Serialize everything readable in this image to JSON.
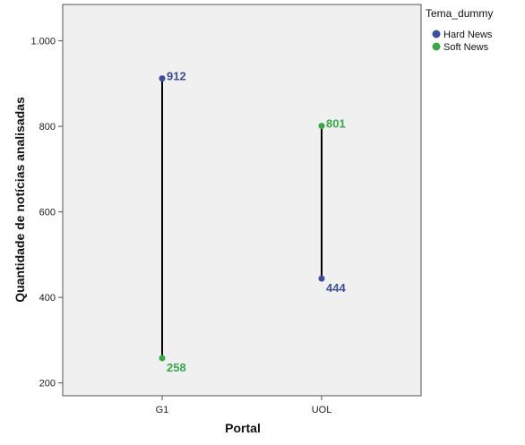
{
  "chart_data": {
    "type": "scatter",
    "subtype": "dropline",
    "xlabel": "Portal",
    "ylabel": "Quantidade de notícias analisadas",
    "categories": [
      "G1",
      "UOL"
    ],
    "ylim": [
      170,
      1085
    ],
    "yticks": [
      200,
      400,
      600,
      800,
      1000
    ],
    "ytick_labels": [
      "200",
      "400",
      "600",
      "800",
      "1.000"
    ],
    "grid": false,
    "legend": {
      "title": "Tema_dummy",
      "placement": "right"
    },
    "series": [
      {
        "name": "Hard News",
        "color": "#3d4e9a",
        "values": [
          912,
          444
        ],
        "labels": [
          "912",
          "444"
        ]
      },
      {
        "name": "Soft News",
        "color": "#3aa64c",
        "values": [
          258,
          801
        ],
        "labels": [
          "258",
          "801"
        ]
      }
    ],
    "plot_background": "#f0f0f0",
    "line_color": "#000000"
  }
}
